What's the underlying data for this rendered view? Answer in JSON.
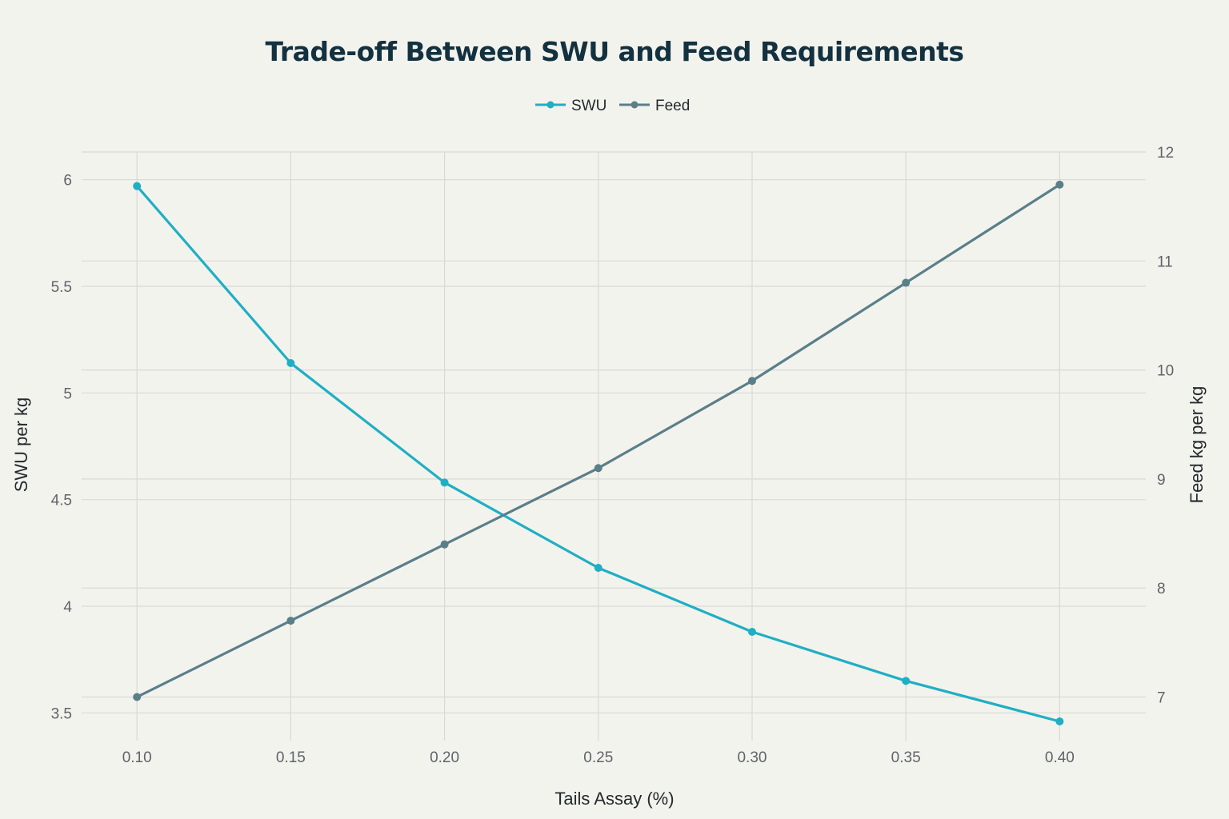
{
  "chart_data": {
    "type": "line",
    "title": "Trade-off Between SWU and Feed Requirements",
    "xlabel": "Tails Assay (%)",
    "ylabel": "SWU per kg",
    "y2label": "Feed kg per kg",
    "x": [
      0.1,
      0.15,
      0.2,
      0.25,
      0.3,
      0.35,
      0.4
    ],
    "x_tick_labels": [
      "0.10",
      "0.15",
      "0.20",
      "0.25",
      "0.30",
      "0.35",
      "0.40"
    ],
    "xlim": [
      0.082,
      0.428
    ],
    "ylim": [
      3.37,
      6.13
    ],
    "y2lim": [
      6.6,
      12.0
    ],
    "y_ticks": [
      3.5,
      4,
      4.5,
      5,
      5.5,
      6
    ],
    "y_tick_labels": [
      "3.5",
      "4",
      "4.5",
      "5",
      "5.5",
      "6"
    ],
    "y2_ticks": [
      7,
      8,
      9,
      10,
      11,
      12
    ],
    "y2_tick_labels": [
      "7",
      "8",
      "9",
      "10",
      "11",
      "12"
    ],
    "grid": true,
    "legend_position": "top-center",
    "series": [
      {
        "name": "SWU",
        "axis": "left",
        "color": "#1fafc4",
        "values": [
          5.97,
          5.14,
          4.58,
          4.18,
          3.88,
          3.65,
          3.46
        ]
      },
      {
        "name": "Feed",
        "axis": "right",
        "color": "#5a7f89",
        "values": [
          7.0,
          7.7,
          8.4,
          9.1,
          9.9,
          10.8,
          11.7
        ]
      }
    ]
  }
}
